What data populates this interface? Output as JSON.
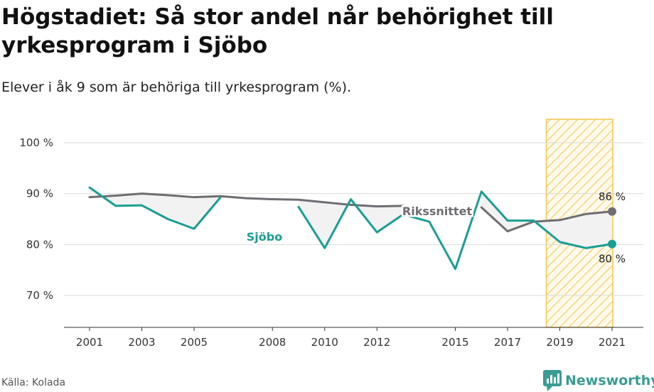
{
  "header": {
    "title": "Högstadiet: Så stor andel når behörighet till yrkesprogram i Sjöbo",
    "subtitle": "Elever i åk 9 som är behöriga till yrkesprogram (%)."
  },
  "footer": {
    "source": "Källa: Kolada",
    "brand": "Newsworthy",
    "brand_color": "#3a9c94"
  },
  "chart_data": {
    "type": "line",
    "title": "Högstadiet: Så stor andel når behörighet till yrkesprogram i Sjöbo",
    "subtitle": "Elever i åk 9 som är behöriga till yrkesprogram (%).",
    "xlabel": "",
    "ylabel": "",
    "xlim": [
      2001,
      2021
    ],
    "ylim": [
      64,
      104
    ],
    "y_ticks": [
      70,
      80,
      90,
      100
    ],
    "y_tick_labels": [
      "70 %",
      "80 %",
      "90 %",
      "100 %"
    ],
    "x_ticks": [
      2001,
      2003,
      2005,
      2008,
      2010,
      2012,
      2015,
      2017,
      2019,
      2021
    ],
    "x_tick_labels": [
      "2001",
      "2003",
      "2005",
      "2008",
      "2010",
      "2012",
      "2015",
      "2017",
      "2019",
      "2021"
    ],
    "grid": true,
    "highlight_range": [
      2019,
      2021
    ],
    "highlight_color": "#f5c451",
    "series": [
      {
        "name": "Rikssnittet",
        "color": "#6f6d72",
        "x": [
          2001,
          2002,
          2003,
          2004,
          2005,
          2006,
          2007,
          2008,
          2009,
          2010,
          2011,
          2012,
          2013,
          2014,
          2015,
          2016,
          2017,
          2018,
          2019,
          2020,
          2021
        ],
        "values": [
          89.3,
          89.6,
          90.0,
          89.7,
          89.3,
          89.5,
          89.1,
          88.9,
          88.8,
          88.3,
          87.8,
          87.5,
          87.6,
          null,
          null,
          87.3,
          82.6,
          84.5,
          84.8,
          86.0,
          86.5
        ],
        "end_label": "86 %"
      },
      {
        "name": "Sjöbo",
        "color": "#1a9e93",
        "x": [
          2001,
          2002,
          2003,
          2004,
          2005,
          2006,
          2007,
          2008,
          2009,
          2010,
          2011,
          2012,
          2013,
          2014,
          2015,
          2016,
          2017,
          2018,
          2019,
          2020,
          2021
        ],
        "values": [
          91.2,
          87.6,
          87.7,
          85.0,
          83.1,
          89.2,
          null,
          null,
          87.4,
          79.3,
          88.9,
          82.4,
          85.9,
          84.5,
          75.2,
          90.4,
          84.7,
          84.7,
          80.5,
          79.3,
          80.1
        ],
        "end_label": "80 %"
      }
    ],
    "fill_between_color": "#f2f2f2"
  }
}
